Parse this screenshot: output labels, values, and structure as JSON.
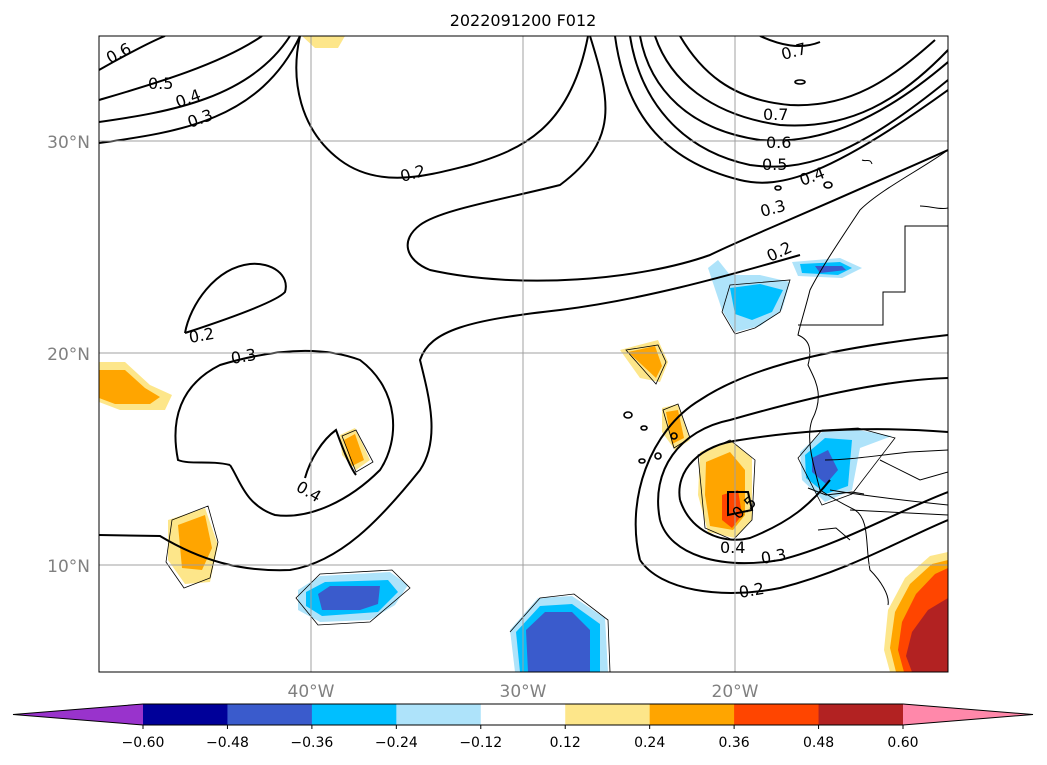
{
  "title": "2022091200 F012",
  "axes": {
    "lat_labels": [
      "30°N",
      "20°N",
      "10°N"
    ],
    "lon_labels": [
      "40°W",
      "30°W",
      "20°W"
    ]
  },
  "contour_labels": [
    "0.6",
    "0.5",
    "0.4",
    "0.3",
    "0.2",
    "0.7",
    "0.7",
    "0.6",
    "0.5",
    "0.4",
    "0.3",
    "0.2",
    "0.2",
    "0.3",
    "0.4",
    "0.5",
    "0.4",
    "0.3",
    "0.2"
  ],
  "colorbar": {
    "ticks": [
      "−0.60",
      "−0.48",
      "−0.36",
      "−0.24",
      "−0.12",
      "0.12",
      "0.24",
      "0.36",
      "0.48",
      "0.60"
    ],
    "colors": [
      "#9933cc",
      "#000099",
      "#3a5bcc",
      "#00bfff",
      "#aee3fa",
      "#ffffff",
      "#fde68a",
      "#ffa500",
      "#ff4500",
      "#b22222",
      "#ff88aa"
    ]
  }
}
